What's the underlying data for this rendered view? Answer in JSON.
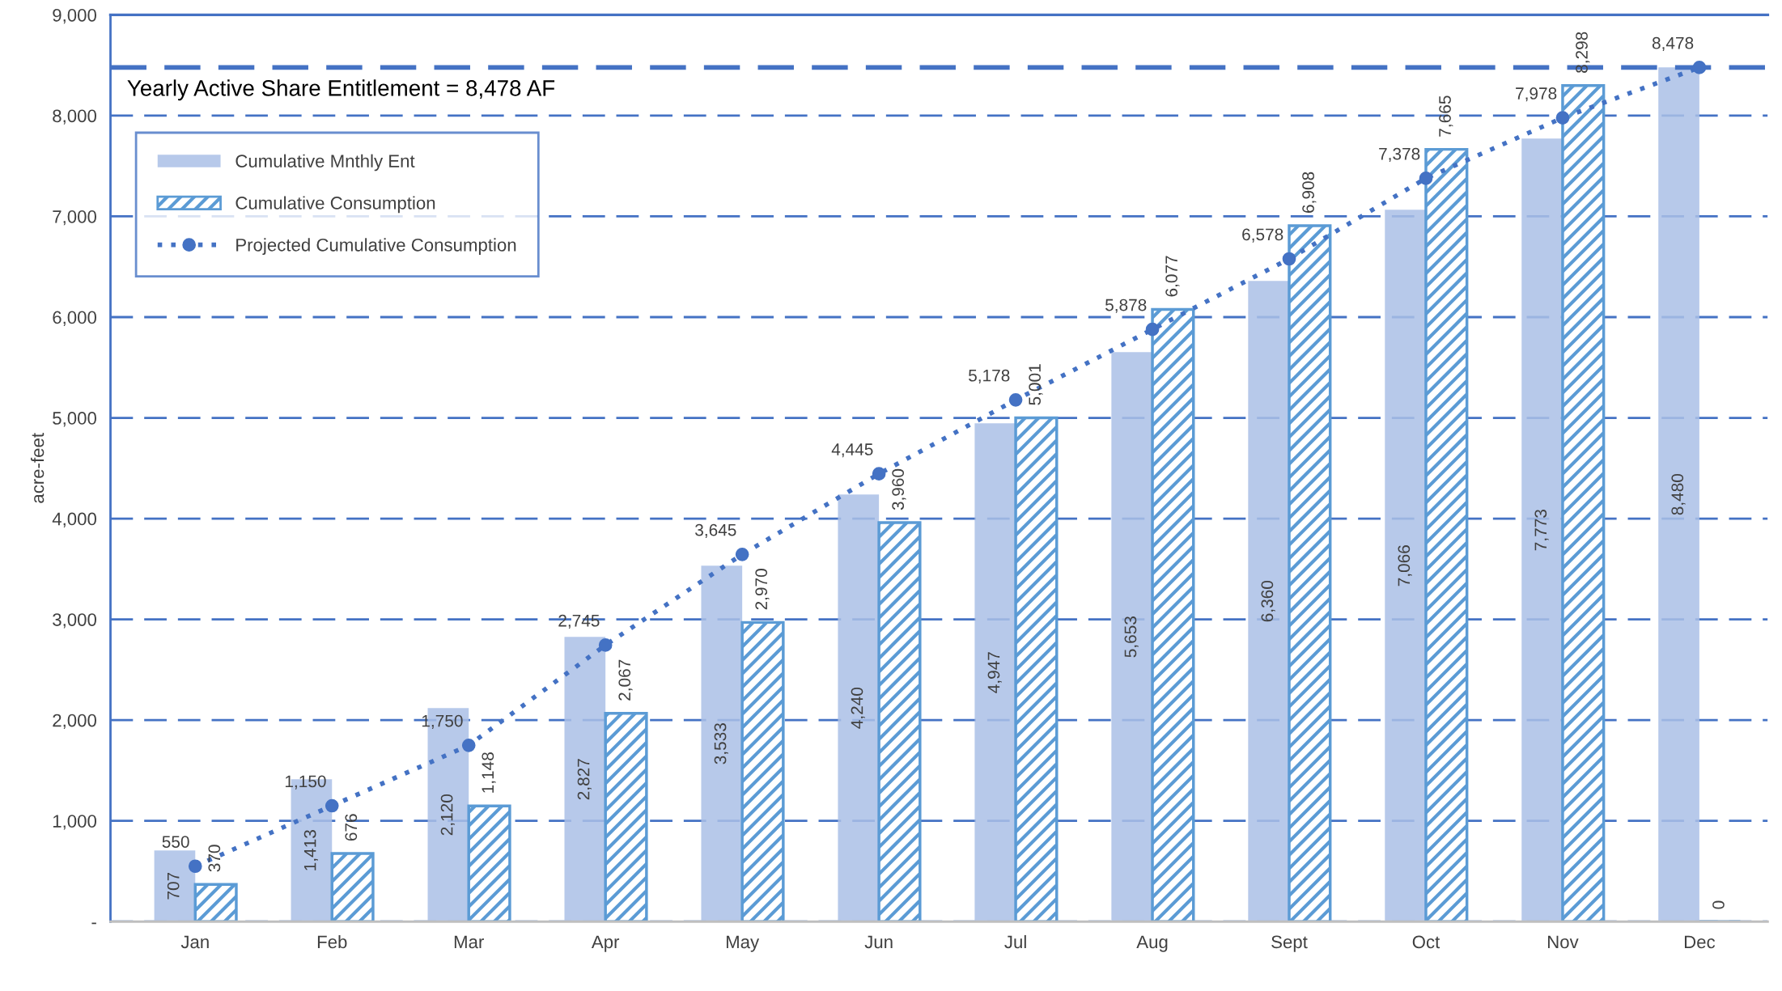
{
  "chart_data": {
    "type": "bar",
    "ylabel": "acre-feet",
    "categories": [
      "Jan",
      "Feb",
      "Mar",
      "Apr",
      "May",
      "Jun",
      "Jul",
      "Aug",
      "Sept",
      "Oct",
      "Nov",
      "Dec"
    ],
    "series": [
      {
        "name": "Cumulative Mnthly Ent",
        "color": "#aabfe6",
        "values": [
          707,
          1413,
          2120,
          2827,
          3533,
          4240,
          4947,
          5653,
          6360,
          7066,
          7773,
          8480
        ],
        "value_labels": [
          "707",
          "1,413",
          "2,120",
          "2,827",
          "3,533",
          "4,240",
          "4,947",
          "5,653",
          "6,360",
          "7,066",
          "7,773",
          "8,480"
        ]
      },
      {
        "name": "Cumulative Consumption",
        "color": "#5b9bd5",
        "values": [
          370,
          676,
          1148,
          2067,
          2970,
          3960,
          5001,
          6077,
          6908,
          7665,
          8298,
          0
        ],
        "value_labels": [
          "370",
          "676",
          "1,148",
          "2,067",
          "2,970",
          "3,960",
          "5,001",
          "6,077",
          "6,908",
          "7,665",
          "8,298",
          "0"
        ]
      },
      {
        "name": "Projected Cumulative Consumption",
        "type": "line",
        "color": "#4472c4",
        "marker": "circle",
        "line_style": "dotted",
        "values": [
          550,
          1150,
          1750,
          2745,
          3645,
          4445,
          5178,
          5878,
          6578,
          7378,
          7978,
          8478
        ],
        "value_labels": [
          "550",
          "1,150",
          "1,750",
          "2,745",
          "3,645",
          "4,445",
          "5,178",
          "5,878",
          "6,578",
          "7,378",
          "7,978",
          "8,478"
        ]
      }
    ],
    "ylim": [
      0,
      9000
    ],
    "yticks": [
      {
        "value": 0,
        "label": "-"
      },
      {
        "value": 1000,
        "label": "1,000"
      },
      {
        "value": 2000,
        "label": "2,000"
      },
      {
        "value": 3000,
        "label": "3,000"
      },
      {
        "value": 4000,
        "label": "4,000"
      },
      {
        "value": 5000,
        "label": "5,000"
      },
      {
        "value": 6000,
        "label": "6,000"
      },
      {
        "value": 7000,
        "label": "7,000"
      },
      {
        "value": 8000,
        "label": "8,000"
      },
      {
        "value": 9000,
        "label": "9,000"
      }
    ],
    "ref_lines": [
      {
        "axis": "y",
        "value": 8478,
        "label": "Yearly Active Share Entitlement = 8,478 AF",
        "color": "#4472c4",
        "line_style": "dashed"
      }
    ],
    "grid": "y",
    "legend": "top left"
  }
}
